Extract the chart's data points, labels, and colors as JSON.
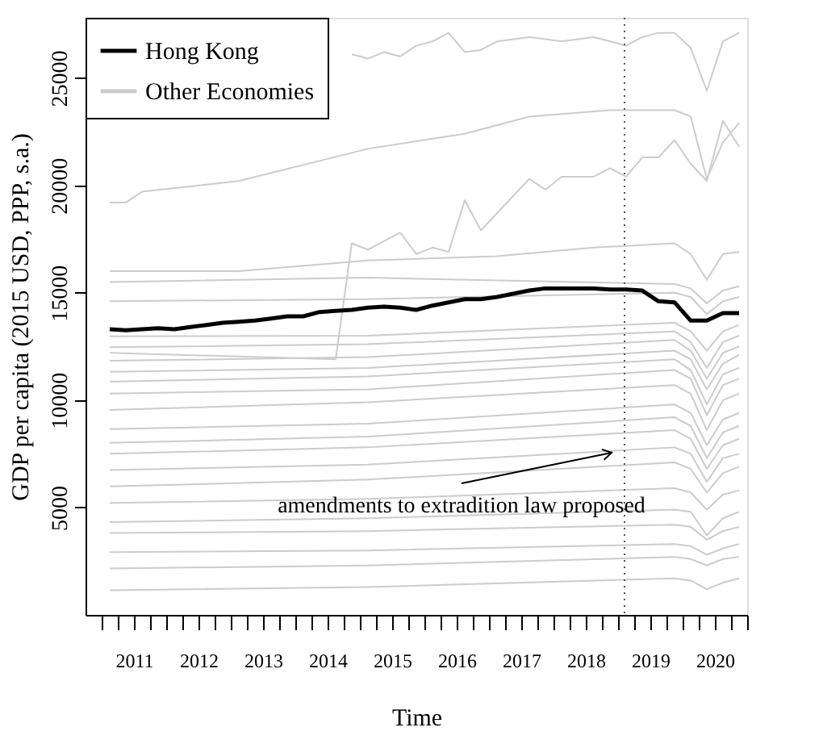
{
  "chart_data": {
    "type": "line",
    "xlabel": "Time",
    "ylabel": "GDP per capita (2015 USD, PPP, s.a.)",
    "xlim": [
      2010.75,
      2021.0
    ],
    "ylim": [
      0,
      27800
    ],
    "xticks": [
      {
        "value": 2011.0,
        "label": null
      },
      {
        "value": 2011.25,
        "label": null
      },
      {
        "value": 2011.5,
        "label": "2011"
      },
      {
        "value": 2011.75,
        "label": null
      },
      {
        "value": 2012.0,
        "label": null
      },
      {
        "value": 2012.25,
        "label": null
      },
      {
        "value": 2012.5,
        "label": "2012"
      },
      {
        "value": 2012.75,
        "label": null
      },
      {
        "value": 2013.0,
        "label": null
      },
      {
        "value": 2013.25,
        "label": null
      },
      {
        "value": 2013.5,
        "label": "2013"
      },
      {
        "value": 2013.75,
        "label": null
      },
      {
        "value": 2014.0,
        "label": null
      },
      {
        "value": 2014.25,
        "label": null
      },
      {
        "value": 2014.5,
        "label": "2014"
      },
      {
        "value": 2014.75,
        "label": null
      },
      {
        "value": 2015.0,
        "label": null
      },
      {
        "value": 2015.25,
        "label": null
      },
      {
        "value": 2015.5,
        "label": "2015"
      },
      {
        "value": 2015.75,
        "label": null
      },
      {
        "value": 2016.0,
        "label": null
      },
      {
        "value": 2016.25,
        "label": null
      },
      {
        "value": 2016.5,
        "label": "2016"
      },
      {
        "value": 2016.75,
        "label": null
      },
      {
        "value": 2017.0,
        "label": null
      },
      {
        "value": 2017.25,
        "label": null
      },
      {
        "value": 2017.5,
        "label": "2017"
      },
      {
        "value": 2017.75,
        "label": null
      },
      {
        "value": 2018.0,
        "label": null
      },
      {
        "value": 2018.25,
        "label": null
      },
      {
        "value": 2018.5,
        "label": "2018"
      },
      {
        "value": 2018.75,
        "label": null
      },
      {
        "value": 2019.0,
        "label": null
      },
      {
        "value": 2019.25,
        "label": null
      },
      {
        "value": 2019.5,
        "label": "2019"
      },
      {
        "value": 2019.75,
        "label": null
      },
      {
        "value": 2020.0,
        "label": null
      },
      {
        "value": 2020.25,
        "label": null
      },
      {
        "value": 2020.5,
        "label": "2020"
      },
      {
        "value": 2020.75,
        "label": null
      },
      {
        "value": 2021.0,
        "label": null
      }
    ],
    "yticks": [
      5000,
      10000,
      15000,
      20000,
      25000
    ],
    "grid": false,
    "legend": "top left",
    "ref_lines": [
      {
        "axis": "x",
        "value": 2019.1,
        "line_style": "dotted",
        "color": "#555555"
      }
    ],
    "annotations": [
      {
        "text": "amendments to extradition law proposed",
        "x": 2018.9,
        "y": 7550
      }
    ],
    "series": [
      {
        "name": "Hong Kong",
        "color": "#000000",
        "x": [
          2011.125,
          2011.375,
          2011.625,
          2011.875,
          2012.125,
          2012.375,
          2012.625,
          2012.875,
          2013.125,
          2013.375,
          2013.625,
          2013.875,
          2014.125,
          2014.375,
          2014.625,
          2014.875,
          2015.125,
          2015.375,
          2015.625,
          2015.875,
          2016.125,
          2016.375,
          2016.625,
          2016.875,
          2017.125,
          2017.375,
          2017.625,
          2017.875,
          2018.125,
          2018.375,
          2018.625,
          2018.875,
          2019.125,
          2019.375,
          2019.625,
          2019.875,
          2020.125,
          2020.375,
          2020.625,
          2020.875
        ],
        "values": [
          13300,
          13250,
          13300,
          13350,
          13300,
          13400,
          13500,
          13600,
          13650,
          13700,
          13800,
          13900,
          13900,
          14100,
          14150,
          14200,
          14300,
          14350,
          14300,
          14200,
          14400,
          14550,
          14700,
          14700,
          14800,
          14950,
          15100,
          15200,
          15200,
          15200,
          15200,
          15150,
          15150,
          15100,
          14600,
          14550,
          13700,
          13700,
          14050,
          14050
        ]
      },
      {
        "name": "Other Economies",
        "color": "#cccccc",
        "x": [
          2011.125,
          2013.125,
          2015.125,
          2017.125,
          2018.625,
          2019.875,
          2020.125,
          2020.375,
          2020.625,
          2020.875
        ],
        "values": [
          16000,
          16000,
          16500,
          16700,
          17100,
          17300,
          16800,
          15600,
          16800,
          16900
        ]
      },
      {
        "color": "#cccccc",
        "x": [
          2014.875,
          2015.125,
          2015.375,
          2015.625,
          2015.875,
          2016.125,
          2016.375,
          2016.625,
          2016.875,
          2017.125,
          2017.625,
          2018.125,
          2018.625,
          2019.125,
          2019.375,
          2019.625,
          2019.875,
          2020.125,
          2020.375,
          2020.625,
          2020.875
        ],
        "values": [
          26100,
          25900,
          26200,
          26000,
          26500,
          26700,
          27100,
          26200,
          26300,
          26700,
          26900,
          26700,
          26900,
          26500,
          26900,
          27100,
          27100,
          26400,
          24400,
          26700,
          27100
        ]
      },
      {
        "color": "#cccccc",
        "x": [
          2011.125,
          2011.375,
          2011.625,
          2013.125,
          2015.125,
          2016.625,
          2017.625,
          2018.875,
          2019.875,
          2020.125,
          2020.375,
          2020.625,
          2020.875
        ],
        "values": [
          19200,
          19200,
          19700,
          20200,
          21700,
          22400,
          23200,
          23500,
          23500,
          23200,
          20300,
          22000,
          22900
        ]
      },
      {
        "color": "#cccccc",
        "x": [
          2011.125,
          2014.625,
          2014.875,
          2015.125,
          2015.625,
          2015.875,
          2016.125,
          2016.375,
          2016.625,
          2016.875,
          2017.625,
          2017.875,
          2018.125,
          2018.625,
          2018.875,
          2019.125,
          2019.375,
          2019.625,
          2019.875,
          2020.125,
          2020.375,
          2020.625,
          2020.875
        ],
        "values": [
          12200,
          11900,
          17300,
          17000,
          17800,
          16800,
          17100,
          16900,
          19300,
          17900,
          20300,
          19800,
          20400,
          20400,
          20800,
          20400,
          21300,
          21300,
          22100,
          21000,
          20200,
          23000,
          21800
        ]
      },
      {
        "color": "#cccccc",
        "x": [
          2011.125,
          2015.125,
          2019.875,
          2020.125,
          2020.375,
          2020.625,
          2020.875
        ],
        "values": [
          15500,
          15700,
          15400,
          15200,
          14500,
          15100,
          15300
        ]
      },
      {
        "color": "#cccccc",
        "x": [
          2011.125,
          2015.125,
          2019.875,
          2020.125,
          2020.375,
          2020.625,
          2020.875
        ],
        "values": [
          14600,
          14700,
          15000,
          14800,
          14000,
          14600,
          14800
        ]
      },
      {
        "color": "#cccccc",
        "x": [
          2011.125,
          2015.125,
          2019.875,
          2020.125,
          2020.375,
          2020.625,
          2020.875
        ],
        "values": [
          12970,
          13000,
          13600,
          13200,
          12300,
          13200,
          13500
        ]
      },
      {
        "color": "#cccccc",
        "x": [
          2011.125,
          2015.125,
          2019.875,
          2020.125,
          2020.375,
          2020.625,
          2020.875
        ],
        "values": [
          12460,
          12600,
          13200,
          12700,
          11500,
          12700,
          13000
        ]
      },
      {
        "color": "#cccccc",
        "x": [
          2011.125,
          2015.125,
          2019.875,
          2020.125,
          2020.375,
          2020.625,
          2020.875
        ],
        "values": [
          11830,
          12000,
          12800,
          12300,
          11000,
          12200,
          12500
        ]
      },
      {
        "color": "#cccccc",
        "x": [
          2011.125,
          2015.125,
          2019.875,
          2020.125,
          2020.375,
          2020.625,
          2020.875
        ],
        "values": [
          11320,
          11500,
          12300,
          11900,
          10500,
          11700,
          12100
        ]
      },
      {
        "color": "#cccccc",
        "x": [
          2011.125,
          2015.125,
          2019.875,
          2020.125,
          2020.375,
          2020.625,
          2020.875
        ],
        "values": [
          10860,
          11100,
          11900,
          11400,
          9800,
          11200,
          11500
        ]
      },
      {
        "color": "#cccccc",
        "x": [
          2011.125,
          2015.125,
          2019.875,
          2020.125,
          2020.375,
          2020.625,
          2020.875
        ],
        "values": [
          10300,
          10500,
          11400,
          11000,
          9300,
          10700,
          11000
        ]
      },
      {
        "color": "#cccccc",
        "x": [
          2011.125,
          2015.125,
          2019.875,
          2020.125,
          2020.375,
          2020.625,
          2020.875
        ],
        "values": [
          9540,
          9900,
          10700,
          10300,
          8600,
          10000,
          10300
        ]
      },
      {
        "color": "#cccccc",
        "x": [
          2011.125,
          2015.125,
          2019.875,
          2020.125,
          2020.375,
          2020.625,
          2020.875
        ],
        "values": [
          8650,
          8900,
          9800,
          9400,
          7900,
          9100,
          9400
        ]
      },
      {
        "color": "#cccccc",
        "x": [
          2011.125,
          2015.125,
          2019.875,
          2020.125,
          2020.375,
          2020.625,
          2020.875
        ],
        "values": [
          8010,
          8300,
          9200,
          8800,
          7300,
          8500,
          8800
        ]
      },
      {
        "color": "#cccccc",
        "x": [
          2011.125,
          2015.125,
          2019.875,
          2020.125,
          2020.375,
          2020.625,
          2020.875
        ],
        "values": [
          7500,
          7800,
          8600,
          8200,
          6800,
          7900,
          8200
        ]
      },
      {
        "color": "#cccccc",
        "x": [
          2011.125,
          2015.125,
          2019.875,
          2020.125,
          2020.375,
          2020.625,
          2020.875
        ],
        "values": [
          6740,
          7000,
          7800,
          7500,
          6200,
          7300,
          7500
        ]
      },
      {
        "color": "#cccccc",
        "x": [
          2011.125,
          2015.125,
          2019.875,
          2020.125,
          2020.375,
          2020.625,
          2020.875
        ],
        "values": [
          5980,
          6300,
          7100,
          6800,
          5700,
          6600,
          6900
        ]
      },
      {
        "color": "#cccccc",
        "x": [
          2011.125,
          2015.125,
          2019.875,
          2020.125,
          2020.375,
          2020.625,
          2020.875
        ],
        "values": [
          5210,
          5400,
          5900,
          5700,
          4900,
          5600,
          5800
        ]
      },
      {
        "color": "#cccccc",
        "x": [
          2011.125,
          2015.125,
          2019.875,
          2020.125,
          2020.375,
          2020.625,
          2020.875
        ],
        "values": [
          4320,
          4500,
          4900,
          4800,
          3700,
          4500,
          4800
        ]
      },
      {
        "color": "#cccccc",
        "x": [
          2011.125,
          2015.125,
          2019.875,
          2020.125,
          2020.375,
          2020.625,
          2020.875
        ],
        "values": [
          3810,
          3900,
          4200,
          4100,
          3500,
          3900,
          4100
        ]
      },
      {
        "color": "#cccccc",
        "x": [
          2011.125,
          2015.125,
          2019.875,
          2020.125,
          2020.375,
          2020.625,
          2020.875
        ],
        "values": [
          2920,
          3000,
          3300,
          3200,
          2800,
          3100,
          3300
        ]
      },
      {
        "color": "#cccccc",
        "x": [
          2011.125,
          2015.125,
          2019.875,
          2020.125,
          2020.375,
          2020.625,
          2020.875
        ],
        "values": [
          2160,
          2300,
          2700,
          2600,
          2300,
          2600,
          2700
        ]
      },
      {
        "color": "#cccccc",
        "x": [
          2011.125,
          2015.125,
          2019.875,
          2020.125,
          2020.375,
          2020.625,
          2020.875
        ],
        "values": [
          1150,
          1300,
          1700,
          1600,
          1200,
          1500,
          1700
        ]
      }
    ]
  }
}
